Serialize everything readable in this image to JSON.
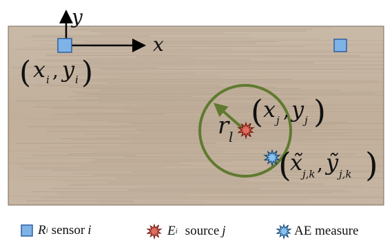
{
  "axes": {
    "x_label": "x",
    "y_label": "y"
  },
  "points": {
    "sensor": {
      "label": "(x_i, y_i)",
      "base_x": "x",
      "sub_x": "i",
      "base_y": "y",
      "sub_y": "i"
    },
    "source": {
      "label": "(x_j, y_j)",
      "base_x": "x",
      "sub_x": "j",
      "base_y": "y",
      "sub_y": "j"
    },
    "measure": {
      "label": "(x̃_{j,k}, ỹ_{j,k})",
      "base_x": "x̃",
      "sub_x": "j,k",
      "base_y": "ỹ",
      "sub_y": "j,k"
    }
  },
  "radius": {
    "base": "r",
    "sub": "l"
  },
  "legend": {
    "sensor": {
      "symbol": "R",
      "sub": "i",
      "text": "sensor",
      "var": "i"
    },
    "source": {
      "symbol": "E",
      "sub": "i",
      "text": "source",
      "var": "j"
    },
    "measure": {
      "text": "AE measure"
    }
  },
  "colors": {
    "wood": "#c4b3a0",
    "sensor_fill": "#7fb2e6",
    "sensor_stroke": "#2d5fa0",
    "source_fill": "#e06c62",
    "source_stroke": "#7a1e12",
    "measure_fill": "#86c2f0",
    "measure_stroke": "#1e4b78",
    "circle": "#5f7a2f"
  }
}
